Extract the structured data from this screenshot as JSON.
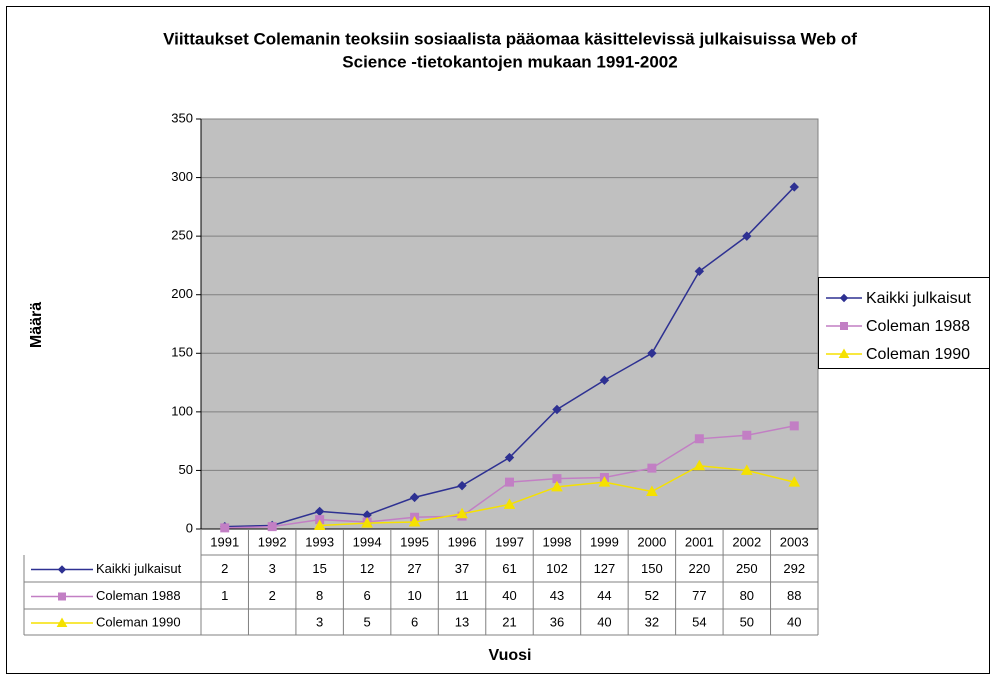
{
  "chart_data": {
    "type": "line",
    "title": [
      "Viittaukset Colemanin teoksiin sosiaalista pääomaa käsittelevissä julkaisuissa Web of",
      "Science -tietokantojen mukaan 1991-2002"
    ],
    "xlabel": "Vuosi",
    "ylabel": "Määrä",
    "categories": [
      "1991",
      "1992",
      "1993",
      "1994",
      "1995",
      "1996",
      "1997",
      "1998",
      "1999",
      "2000",
      "2001",
      "2002",
      "2003"
    ],
    "series": [
      {
        "name": "Kaikki julkaisut",
        "color": "#2e3192",
        "marker": "diamond",
        "values": [
          2,
          3,
          15,
          12,
          27,
          37,
          61,
          102,
          127,
          150,
          220,
          250,
          292
        ]
      },
      {
        "name": "Coleman 1988",
        "color": "#c27fc4",
        "marker": "square",
        "values": [
          1,
          2,
          8,
          6,
          10,
          11,
          40,
          43,
          44,
          52,
          77,
          80,
          88
        ]
      },
      {
        "name": "Coleman 1990",
        "color": "#f5e100",
        "marker": "triangle",
        "values": [
          null,
          null,
          3,
          5,
          6,
          13,
          21,
          36,
          40,
          32,
          54,
          50,
          40
        ]
      }
    ],
    "ylim": [
      0,
      350
    ],
    "yticks": [
      0,
      50,
      100,
      150,
      200,
      250,
      300,
      350
    ],
    "grid": true,
    "legend": "right",
    "data_table": true
  }
}
